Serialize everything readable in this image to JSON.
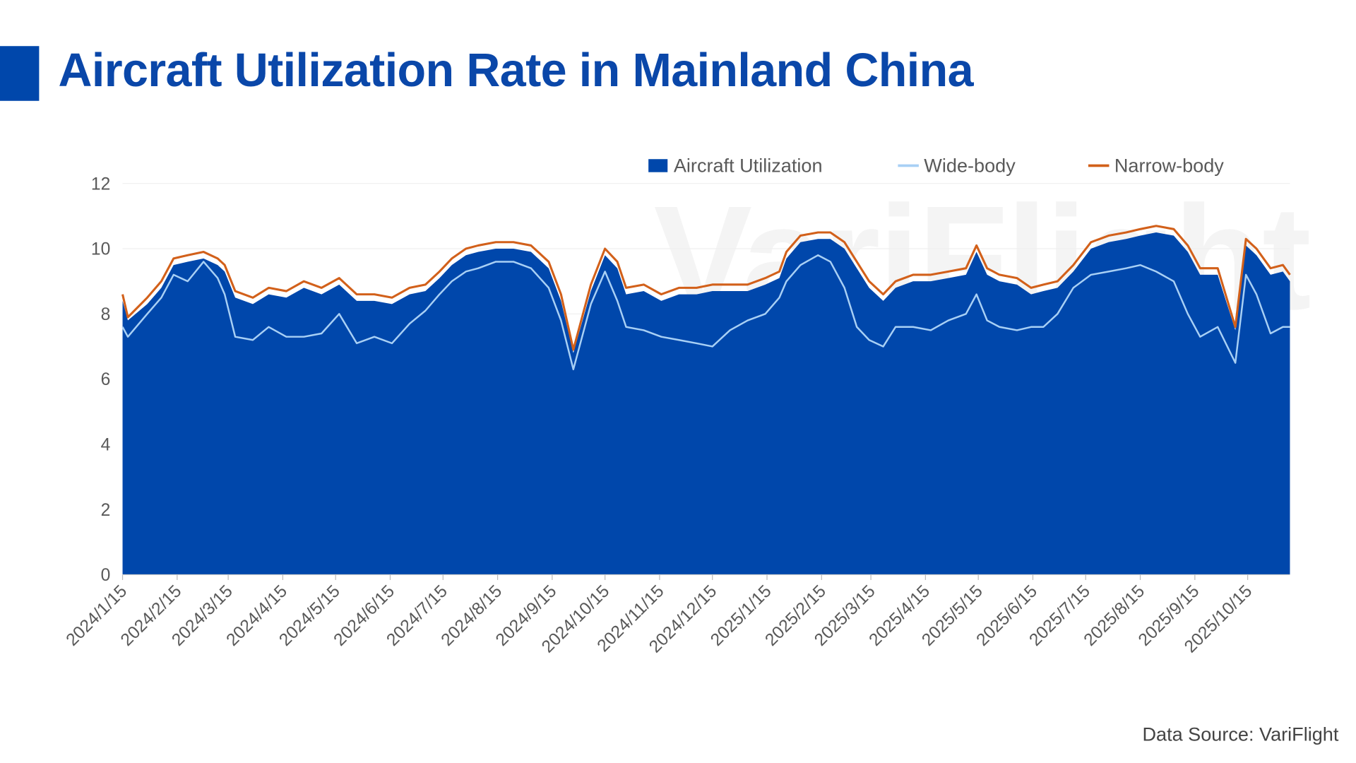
{
  "title": "Aircraft Utilization Rate in Mainland China",
  "watermark": "VariFlight",
  "source": "Data Source: VariFlight",
  "colors": {
    "accent": "#0047ab",
    "area": "#0047ab",
    "wide": "#a8d0f5",
    "narrow": "#d2601a"
  },
  "chart_data": {
    "type": "area",
    "title": "",
    "xlabel": "",
    "ylabel": "",
    "ylim": [
      0,
      12
    ],
    "yticks": [
      "0",
      "2",
      "4",
      "6",
      "8",
      "10",
      "12"
    ],
    "xticks": [
      "2024/1/15",
      "2024/2/15",
      "2024/3/15",
      "2024/4/15",
      "2024/5/15",
      "2024/6/15",
      "2024/7/15",
      "2024/8/15",
      "2024/9/15",
      "2024/10/15",
      "2024/11/15",
      "2024/12/15",
      "2025/1/15",
      "2025/2/15",
      "2025/3/15",
      "2025/4/15",
      "2025/5/15",
      "2025/6/15",
      "2025/7/15",
      "2025/8/15",
      "2025/9/15",
      "2025/10/15"
    ],
    "xrange": [
      "2024/1/15",
      "2025/11/8"
    ],
    "grid": true,
    "legend": "top-right",
    "x": [
      "2024/1/15",
      "2024/1/18",
      "2024/1/29",
      "2024/2/6",
      "2024/2/13",
      "2024/2/21",
      "2024/3/1",
      "2024/3/9",
      "2024/3/13",
      "2024/3/19",
      "2024/3/29",
      "2024/4/7",
      "2024/4/17",
      "2024/4/27",
      "2024/5/7",
      "2024/5/17",
      "2024/5/27",
      "2024/6/6",
      "2024/6/16",
      "2024/6/26",
      "2024/7/5",
      "2024/7/13",
      "2024/7/20",
      "2024/7/28",
      "2024/8/4",
      "2024/8/14",
      "2024/8/24",
      "2024/9/3",
      "2024/9/13",
      "2024/9/20",
      "2024/9/27",
      "2024/10/7",
      "2024/10/15",
      "2024/10/22",
      "2024/10/27",
      "2024/11/6",
      "2024/11/16",
      "2024/11/26",
      "2024/12/6",
      "2024/12/15",
      "2024/12/25",
      "2025/1/4",
      "2025/1/14",
      "2025/1/22",
      "2025/1/26",
      "2025/2/3",
      "2025/2/13",
      "2025/2/20",
      "2025/2/28",
      "2025/3/7",
      "2025/3/14",
      "2025/3/22",
      "2025/3/29",
      "2025/4/8",
      "2025/4/18",
      "2025/4/28",
      "2025/5/8",
      "2025/5/14",
      "2025/5/20",
      "2025/5/27",
      "2025/6/6",
      "2025/6/14",
      "2025/6/21",
      "2025/6/29",
      "2025/7/8",
      "2025/7/18",
      "2025/7/28",
      "2025/8/7",
      "2025/8/15",
      "2025/8/24",
      "2025/9/3",
      "2025/9/11",
      "2025/9/18",
      "2025/9/28",
      "2025/10/8",
      "2025/10/14",
      "2025/10/20",
      "2025/10/28",
      "2025/11/4",
      "2025/11/8"
    ],
    "series": [
      {
        "name": "Aircraft Utilization",
        "type": "area",
        "values": [
          8.4,
          7.8,
          8.3,
          8.8,
          9.5,
          9.6,
          9.7,
          9.5,
          9.3,
          8.5,
          8.3,
          8.6,
          8.5,
          8.8,
          8.6,
          8.9,
          8.4,
          8.4,
          8.3,
          8.6,
          8.7,
          9.1,
          9.5,
          9.8,
          9.9,
          10.0,
          10.0,
          9.9,
          9.4,
          8.4,
          6.8,
          8.7,
          9.8,
          9.4,
          8.6,
          8.7,
          8.4,
          8.6,
          8.6,
          8.7,
          8.7,
          8.7,
          8.9,
          9.1,
          9.7,
          10.2,
          10.3,
          10.3,
          10.0,
          9.4,
          8.8,
          8.4,
          8.8,
          9.0,
          9.0,
          9.1,
          9.2,
          9.9,
          9.2,
          9.0,
          8.9,
          8.6,
          8.7,
          8.8,
          9.3,
          10.0,
          10.2,
          10.3,
          10.4,
          10.5,
          10.4,
          9.9,
          9.2,
          9.2,
          7.5,
          10.1,
          9.8,
          9.2,
          9.3,
          9.0
        ]
      },
      {
        "name": "Wide-body",
        "type": "line",
        "values": [
          7.6,
          7.3,
          8.0,
          8.5,
          9.2,
          9.0,
          9.6,
          9.1,
          8.6,
          7.3,
          7.2,
          7.6,
          7.3,
          7.3,
          7.4,
          8.0,
          7.1,
          7.3,
          7.1,
          7.7,
          8.1,
          8.6,
          9.0,
          9.3,
          9.4,
          9.6,
          9.6,
          9.4,
          8.8,
          7.8,
          6.3,
          8.3,
          9.3,
          8.4,
          7.6,
          7.5,
          7.3,
          7.2,
          7.1,
          7.0,
          7.5,
          7.8,
          8.0,
          8.5,
          9.0,
          9.5,
          9.8,
          9.6,
          8.8,
          7.6,
          7.2,
          7.0,
          7.6,
          7.6,
          7.5,
          7.8,
          8.0,
          8.6,
          7.8,
          7.6,
          7.5,
          7.6,
          7.6,
          8.0,
          8.8,
          9.2,
          9.3,
          9.4,
          9.5,
          9.3,
          9.0,
          8.0,
          7.3,
          7.6,
          6.5,
          9.2,
          8.6,
          7.4,
          7.6,
          7.6
        ]
      },
      {
        "name": "Narrow-body",
        "type": "line",
        "values": [
          8.6,
          7.9,
          8.5,
          9.0,
          9.7,
          9.8,
          9.9,
          9.7,
          9.5,
          8.7,
          8.5,
          8.8,
          8.7,
          9.0,
          8.8,
          9.1,
          8.6,
          8.6,
          8.5,
          8.8,
          8.9,
          9.3,
          9.7,
          10.0,
          10.1,
          10.2,
          10.2,
          10.1,
          9.6,
          8.6,
          6.9,
          8.9,
          10.0,
          9.6,
          8.8,
          8.9,
          8.6,
          8.8,
          8.8,
          8.9,
          8.9,
          8.9,
          9.1,
          9.3,
          9.9,
          10.4,
          10.5,
          10.5,
          10.2,
          9.6,
          9.0,
          8.6,
          9.0,
          9.2,
          9.2,
          9.3,
          9.4,
          10.1,
          9.4,
          9.2,
          9.1,
          8.8,
          8.9,
          9.0,
          9.5,
          10.2,
          10.4,
          10.5,
          10.6,
          10.7,
          10.6,
          10.1,
          9.4,
          9.4,
          7.6,
          10.3,
          10.0,
          9.4,
          9.5,
          9.2
        ]
      }
    ]
  }
}
